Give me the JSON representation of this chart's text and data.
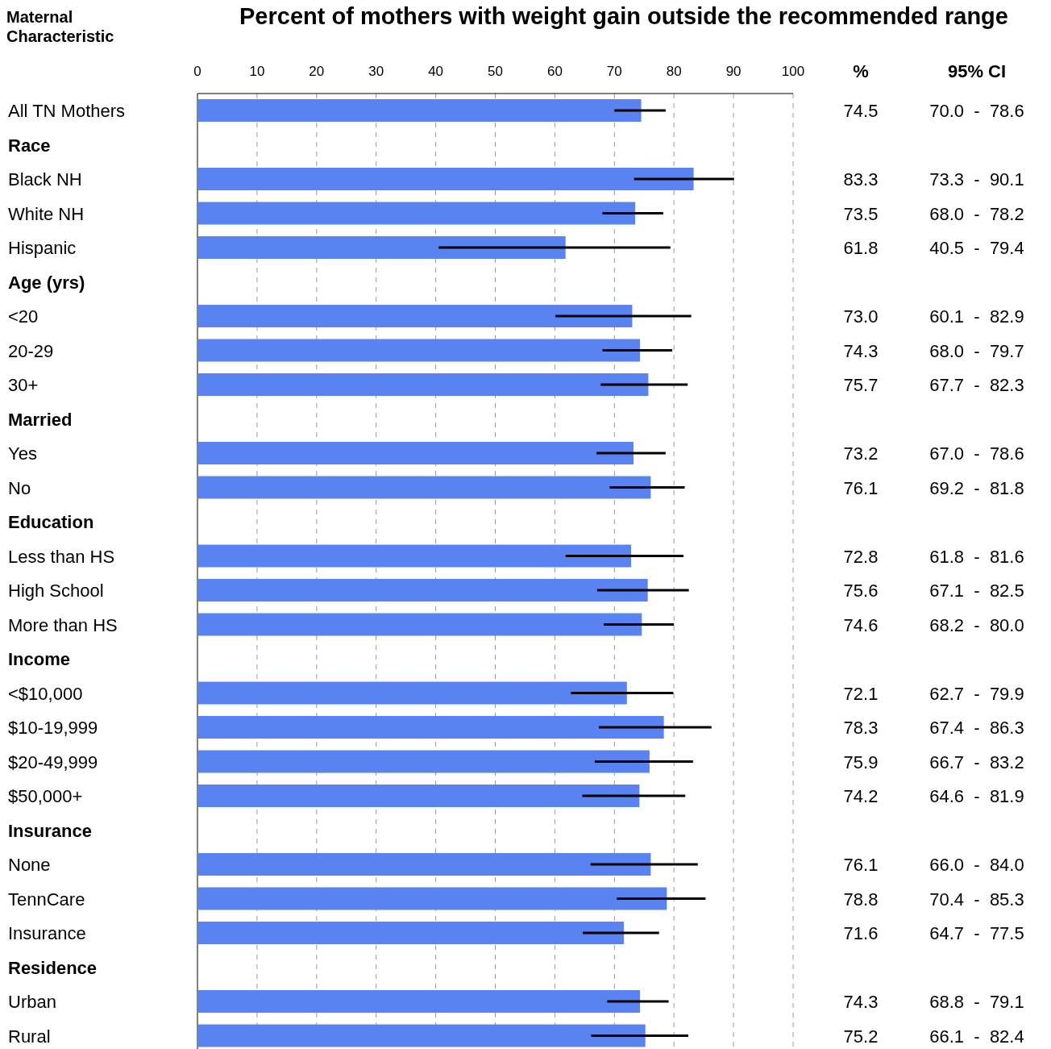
{
  "chart_data": {
    "type": "bar",
    "orientation": "horizontal",
    "title": "Percent of mothers with weight gain outside the recommended range",
    "ylabel": "Maternal Characteristic",
    "annotations": [
      "%",
      "95% CI",
      "70.0 - 78.6",
      "73.3 - 90.1",
      "68.0 - 78.2",
      "40.5 - 79.4",
      "60.1 - 82.9",
      "68.0 - 79.7",
      "67.7 - 82.3",
      "67.0 - 78.6",
      "69.2 - 81.8",
      "61.8 - 81.6",
      "67.1 - 82.5",
      "68.2 - 80.0",
      "62.7 - 79.9",
      "67.4 - 86.3",
      "66.7 - 83.2",
      "64.6 - 81.9",
      "66.0 - 84.0",
      "70.4 - 85.3",
      "64.7 - 77.5",
      "68.8 - 79.1",
      "66.1 - 82.4"
    ],
    "categories": [
      "All TN Mothers",
      "Race",
      "Black NH",
      "White NH",
      "Hispanic",
      "Age (yrs)",
      "<20",
      "20-29",
      "30+",
      "Married",
      "Yes",
      "No",
      "Education",
      "Less than HS",
      "High School",
      "More than HS",
      "Income",
      "<$10,000",
      "$10-19,999",
      "$20-49,999",
      "$50,000+",
      "Insurance",
      "None",
      "TennCare",
      "Insurance",
      "Residence",
      "Urban",
      "Rural"
    ],
    "values": [
      74.5,
      null,
      83.3,
      73.5,
      61.8,
      null,
      73.0,
      74.3,
      75.7,
      null,
      73.2,
      76.1,
      null,
      72.8,
      75.6,
      74.6,
      null,
      72.1,
      78.3,
      75.9,
      74.2,
      null,
      76.1,
      78.8,
      71.6,
      null,
      74.3,
      75.2
    ],
    "value_labels": [
      "74.5",
      null,
      "83.3",
      "73.5",
      "61.8",
      null,
      "73.0",
      "74.3",
      "75.7",
      null,
      "73.2",
      "76.1",
      null,
      "72.8",
      "75.6",
      "74.6",
      null,
      "72.1",
      "78.3",
      "75.9",
      "74.2",
      null,
      "76.1",
      "78.8",
      "71.6",
      null,
      "74.3",
      "75.2"
    ],
    "errors": [
      [
        70.0,
        78.6
      ],
      null,
      [
        73.3,
        90.1
      ],
      [
        68.0,
        78.2
      ],
      [
        40.5,
        79.4
      ],
      null,
      [
        60.1,
        82.9
      ],
      [
        68.0,
        79.7
      ],
      [
        67.7,
        82.3
      ],
      null,
      [
        67.0,
        78.6
      ],
      [
        69.2,
        81.8
      ],
      null,
      [
        61.8,
        81.6
      ],
      [
        67.1,
        82.5
      ],
      [
        68.2,
        80.0
      ],
      null,
      [
        62.7,
        79.9
      ],
      [
        67.4,
        86.3
      ],
      [
        66.7,
        83.2
      ],
      [
        64.6,
        81.9
      ],
      null,
      [
        66.0,
        84.0
      ],
      [
        70.4,
        85.3
      ],
      [
        64.7,
        77.5
      ],
      null,
      [
        68.8,
        79.1
      ],
      [
        66.1,
        82.4
      ]
    ],
    "color": "#5a83f2",
    "xlim": [
      0,
      100
    ],
    "xticks": [
      0,
      10,
      20,
      30,
      40,
      50,
      60,
      70,
      80,
      90,
      100
    ],
    "grid": "x"
  }
}
